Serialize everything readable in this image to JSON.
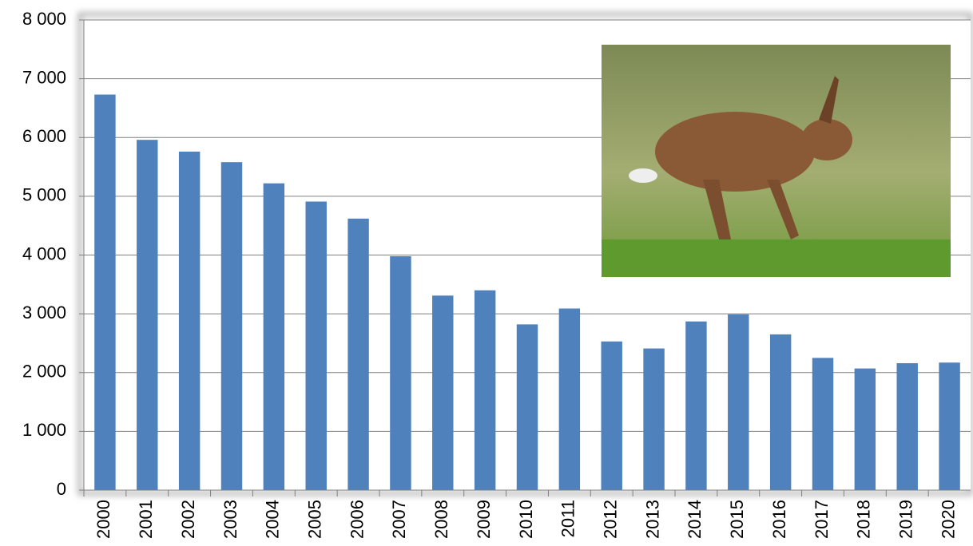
{
  "chart_data": {
    "type": "bar",
    "categories": [
      "2000",
      "2001",
      "2002",
      "2003",
      "2004",
      "2005",
      "2006",
      "2007",
      "2008",
      "2009",
      "2010",
      "2011",
      "2012",
      "2013",
      "2014",
      "2015",
      "2016",
      "2017",
      "2018",
      "2019",
      "2020"
    ],
    "values": [
      6730,
      5960,
      5760,
      5580,
      5220,
      4910,
      4620,
      3980,
      3310,
      3400,
      2820,
      3090,
      2530,
      2410,
      2870,
      2990,
      2650,
      2250,
      2070,
      2160,
      2170
    ],
    "color": "#4f81bd",
    "ylim": [
      0,
      8000
    ],
    "yticks": [
      0,
      {
        "value": 1000,
        "label": "1 000"
      },
      {
        "value": 2000,
        "label": "2 000"
      },
      {
        "value": 3000,
        "label": "3 000"
      },
      {
        "value": 4000,
        "label": "4 000"
      },
      {
        "value": 5000,
        "label": "5 000"
      },
      {
        "value": 6000,
        "label": "6 000"
      },
      {
        "value": 7000,
        "label": "7 000"
      },
      {
        "value": 8000,
        "label": "8 000"
      }
    ],
    "grid": true
  }
}
